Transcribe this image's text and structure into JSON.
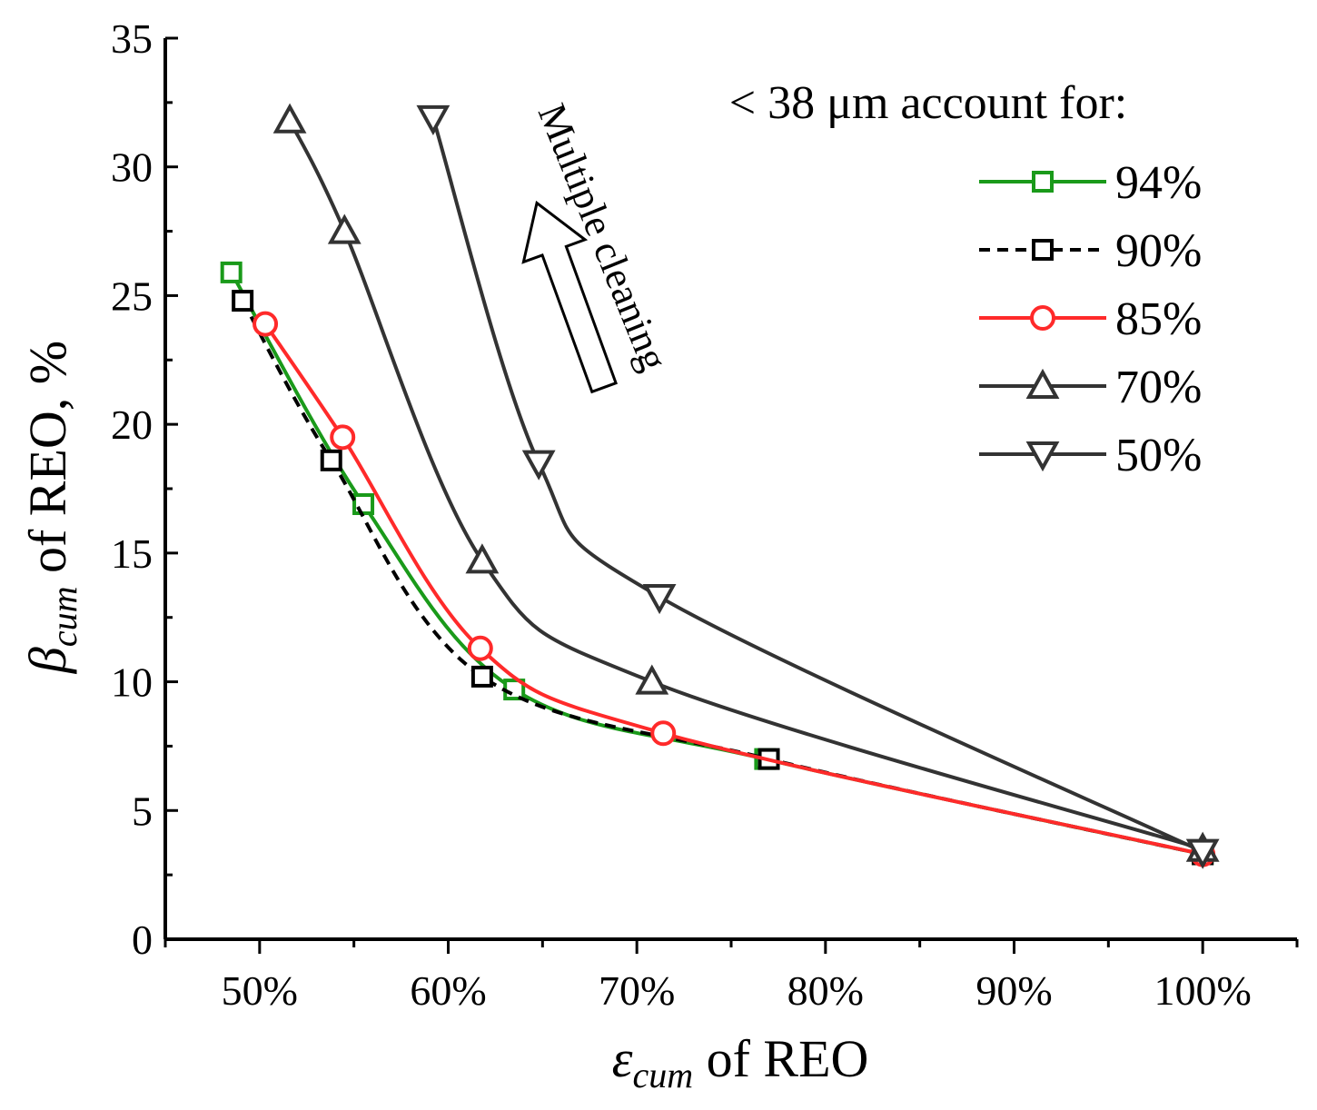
{
  "chart_data": {
    "type": "line",
    "title": "",
    "xlabel": {
      "symbol": "ε",
      "subscript": "cum",
      "text": " of REO"
    },
    "ylabel": {
      "symbol": "β",
      "subscript": "cum",
      "text": " of REO, %"
    },
    "xlim": [
      45,
      105
    ],
    "ylim": [
      0,
      35
    ],
    "x_ticks": [
      50,
      60,
      70,
      80,
      90,
      100
    ],
    "x_tick_labels": [
      "50%",
      "60%",
      "70%",
      "80%",
      "90%",
      "100%"
    ],
    "y_ticks": [
      0,
      5,
      10,
      15,
      20,
      25,
      30,
      35
    ],
    "y_tick_labels": [
      "0",
      "5",
      "10",
      "15",
      "20",
      "25",
      "30",
      "35"
    ],
    "grid": false,
    "legend_title": "< 38 μm account for:",
    "legend_position": "top-right",
    "annotation": "Multiple cleaning",
    "series": [
      {
        "name": "94%",
        "color": "#1a9a1a",
        "marker": "square",
        "dashed": false,
        "x": [
          48.5,
          55.5,
          63.5,
          76.8,
          100
        ],
        "y": [
          25.9,
          16.9,
          9.7,
          7.0,
          3.3
        ]
      },
      {
        "name": "90%",
        "color": "#000000",
        "marker": "square",
        "dashed": true,
        "x": [
          49.1,
          53.8,
          61.8,
          77.0,
          100
        ],
        "y": [
          24.8,
          18.6,
          10.2,
          7.0,
          3.3
        ]
      },
      {
        "name": "85%",
        "color": "#ff2a2a",
        "marker": "circle",
        "dashed": false,
        "x": [
          50.3,
          54.4,
          61.7,
          71.4,
          100
        ],
        "y": [
          23.9,
          19.5,
          11.3,
          8.0,
          3.3
        ]
      },
      {
        "name": "70%",
        "color": "#333333",
        "marker": "triangle-up",
        "dashed": false,
        "x": [
          51.6,
          54.5,
          61.8,
          70.8,
          100
        ],
        "y": [
          31.8,
          27.5,
          14.7,
          10.0,
          3.5
        ]
      },
      {
        "name": "50%",
        "color": "#333333",
        "marker": "triangle-down",
        "dashed": false,
        "x": [
          59.2,
          64.8,
          71.2,
          100
        ],
        "y": [
          31.9,
          18.5,
          13.3,
          3.4
        ]
      }
    ]
  }
}
